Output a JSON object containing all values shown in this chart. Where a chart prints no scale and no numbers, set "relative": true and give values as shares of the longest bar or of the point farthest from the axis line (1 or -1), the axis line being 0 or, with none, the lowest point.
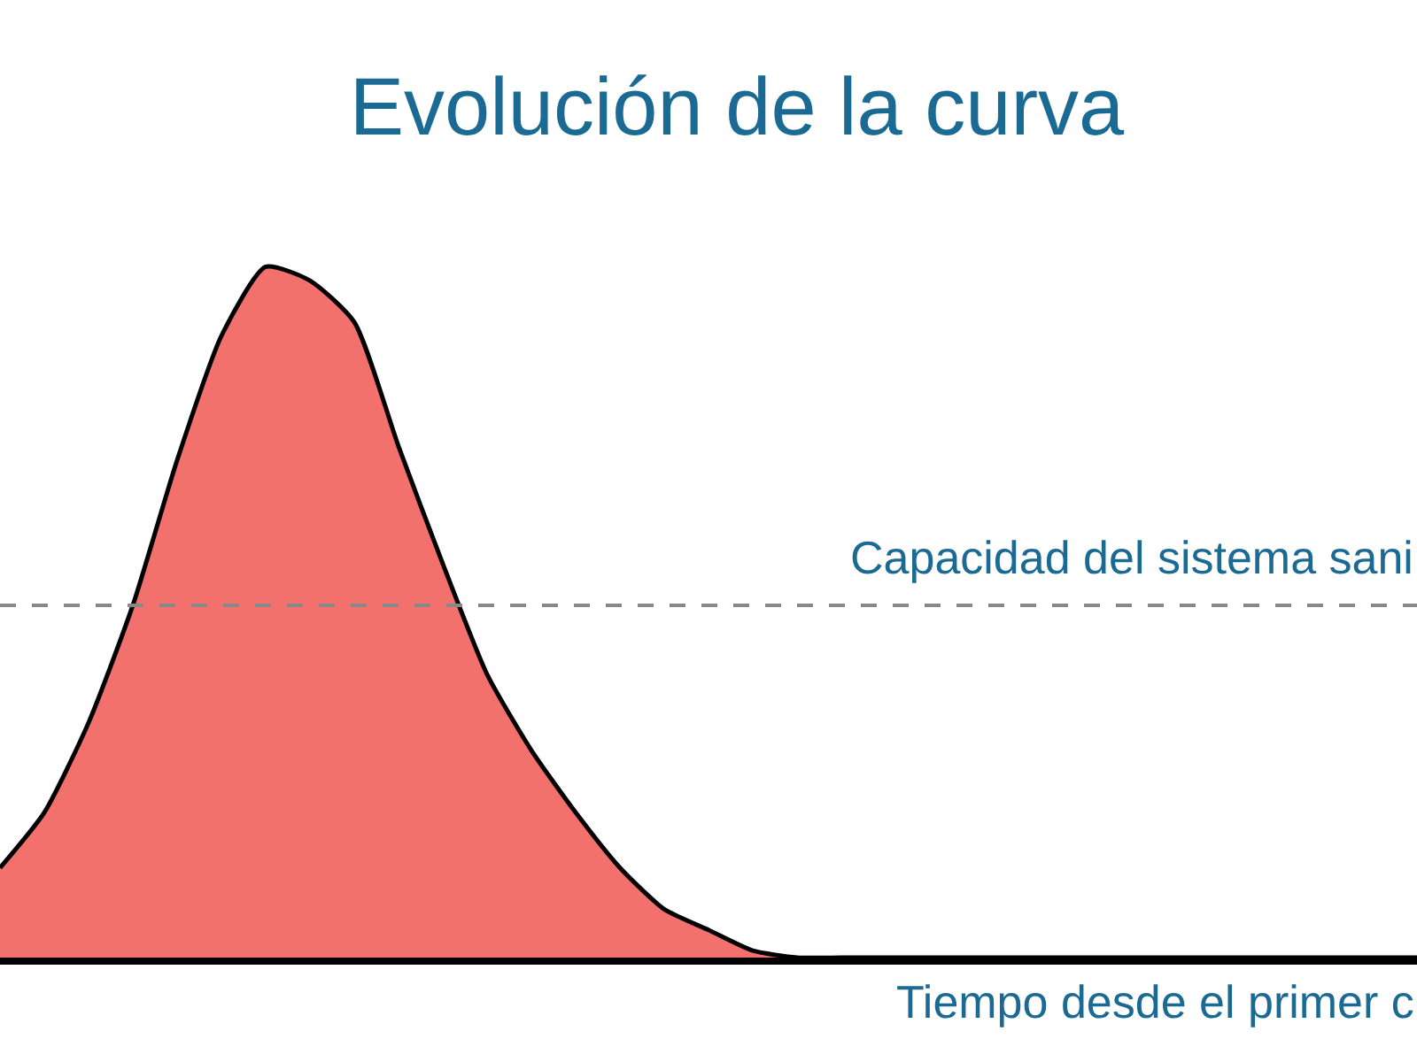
{
  "chart_data": {
    "type": "area",
    "title": "Evolución de la curva",
    "xlabel": "Tiempo desde el primer c",
    "relative": true,
    "categories": [
      null,
      null,
      null,
      null,
      null,
      null,
      null,
      null,
      null,
      null,
      null,
      null,
      null,
      null,
      null,
      null,
      null,
      null,
      null,
      null,
      null,
      null,
      null,
      null,
      null,
      null,
      null,
      null,
      null,
      null,
      null,
      null,
      null
    ],
    "series": [
      {
        "color": "#f2716c",
        "values": [
          0.13,
          0.21,
          0.34,
          0.51,
          0.72,
          0.9,
          1.0,
          0.98,
          0.92,
          0.74,
          0.57,
          0.41,
          0.3,
          0.21,
          0.13,
          0.07,
          0.04,
          0.01,
          0,
          0,
          0,
          0,
          0,
          0,
          0,
          0,
          0,
          0,
          0,
          0,
          0,
          0,
          0
        ]
      }
    ],
    "ref_lines": [
      {
        "axis": "y",
        "value": 0.51,
        "label": "Capacidad del sistema sani",
        "color": "#888888",
        "line_style": "dashed"
      }
    ]
  }
}
